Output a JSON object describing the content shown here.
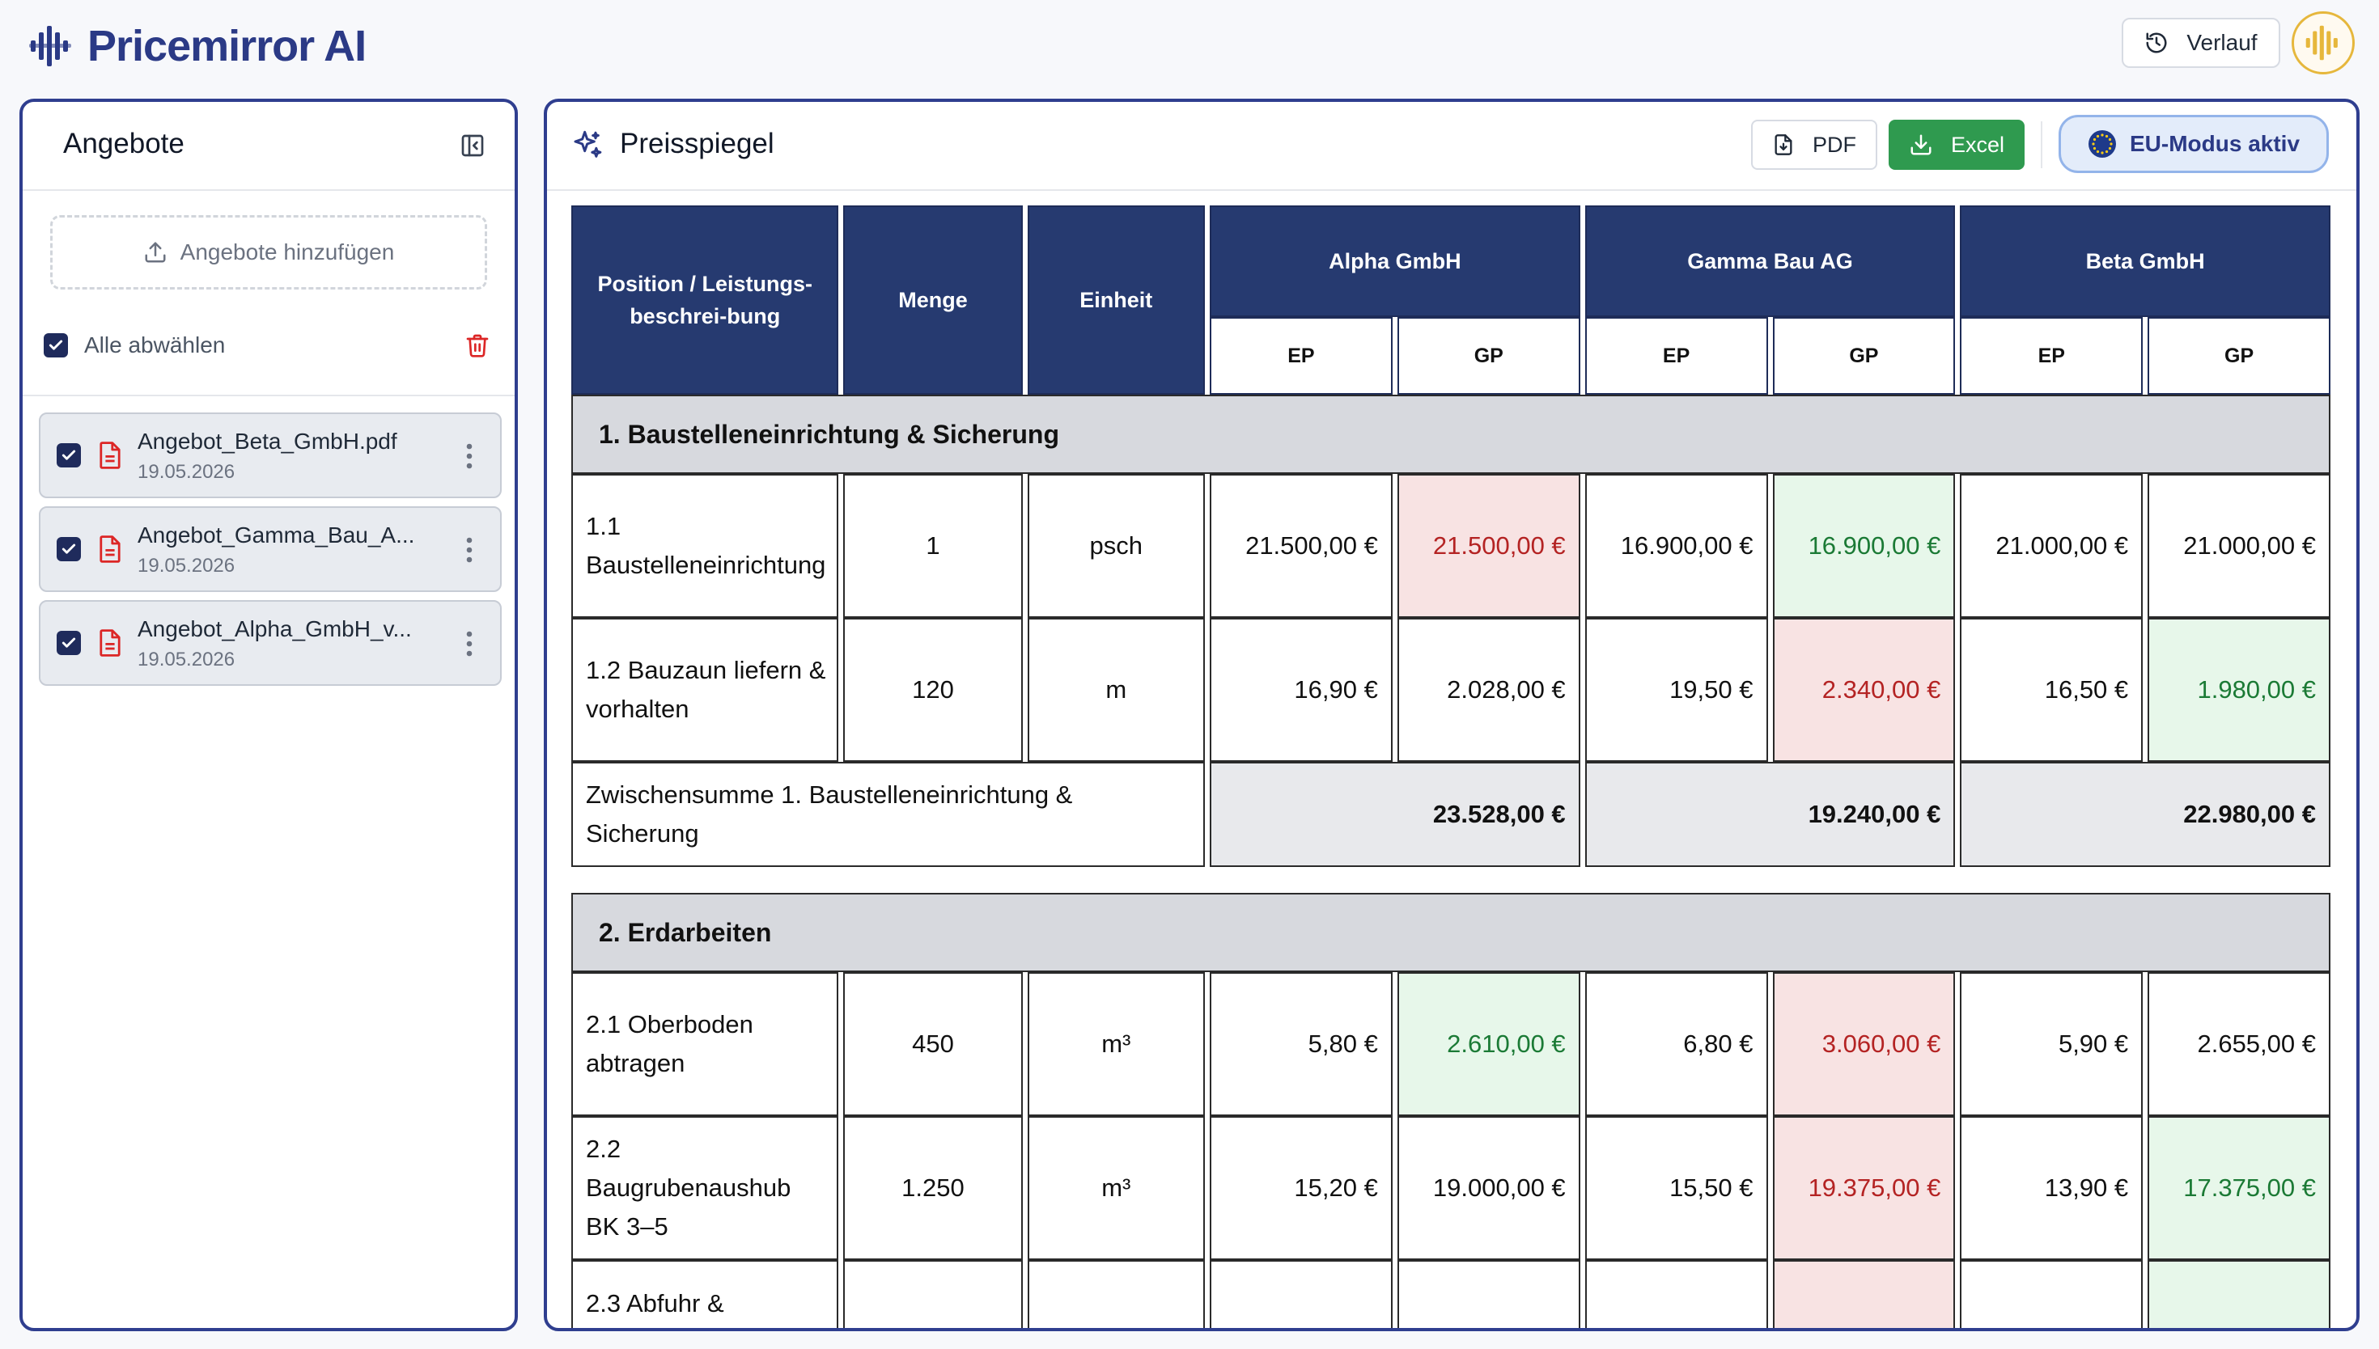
{
  "app": {
    "name": "Pricemirror AI",
    "accent": "#2b3a86"
  },
  "header": {
    "history_label": "Verlauf"
  },
  "left": {
    "title": "Angebote",
    "upload_label": "Angebote hinzufügen",
    "select_all_label": "Alle abwählen",
    "files": [
      {
        "name": "Angebot_Beta_GmbH.pdf",
        "date": "19.05.2026",
        "checked": true
      },
      {
        "name": "Angebot_Gamma_Bau_A...",
        "date": "19.05.2026",
        "checked": true
      },
      {
        "name": "Angebot_Alpha_GmbH_v...",
        "date": "19.05.2026",
        "checked": true
      }
    ]
  },
  "right": {
    "title": "Preisspiegel",
    "pdf_label": "PDF",
    "excel_label": "Excel",
    "eu_label": "EU-Modus aktiv"
  },
  "table": {
    "head": {
      "position": "Position / Leistungs-beschrei-bung",
      "menge": "Menge",
      "einheit": "Einheit",
      "bidders": [
        "Alpha GmbH",
        "Gamma Bau AG",
        "Beta GmbH"
      ],
      "ep": "EP",
      "gp": "GP"
    },
    "sections": [
      {
        "title": "1. Baustelleneinrichtung & Sicherung",
        "rows": [
          {
            "pos": "1.1 Baustelleneinrichtung",
            "menge": "1",
            "einheit": "psch",
            "a_ep": "21.500,00 €",
            "a_gp": "21.500,00 €",
            "g_ep": "16.900,00 €",
            "g_gp": "16.900,00 €",
            "b_ep": "21.000,00 €",
            "b_gp": "21.000,00 €"
          },
          {
            "pos": "1.2 Bauzaun liefern & vorhalten",
            "menge": "120",
            "einheit": "m",
            "a_ep": "16,90 €",
            "a_gp": "2.028,00 €",
            "g_ep": "19,50 €",
            "g_gp": "2.340,00 €",
            "b_ep": "16,50 €",
            "b_gp": "1.980,00 €"
          }
        ],
        "subtotal": {
          "label": "Zwischensumme 1. Baustelleneinrichtung & Sicherung",
          "alpha": "23.528,00 €",
          "gamma": "19.240,00 €",
          "beta": "22.980,00 €"
        }
      },
      {
        "title": "2. Erdarbeiten",
        "rows": [
          {
            "pos": "2.1 Oberboden abtragen",
            "menge": "450",
            "einheit": "m³",
            "a_ep": "5,80 €",
            "a_gp": "2.610,00 €",
            "g_ep": "6,80 €",
            "g_gp": "3.060,00 €",
            "b_ep": "5,90 €",
            "b_gp": "2.655,00 €"
          },
          {
            "pos": "2.2 Baugrubenaushub BK 3–5",
            "menge": "1.250",
            "einheit": "m³",
            "a_ep": "15,20 €",
            "a_gp": "19.000,00 €",
            "g_ep": "15,50 €",
            "g_gp": "19.375,00 €",
            "b_ep": "13,90 €",
            "b_gp": "17.375,00 €"
          },
          {
            "pos": "2.3 Abfuhr &",
            "menge": "",
            "einheit": "",
            "a_ep": "",
            "a_gp": "",
            "g_ep": "",
            "g_gp": "",
            "b_ep": "",
            "b_gp": ""
          }
        ]
      }
    ]
  }
}
